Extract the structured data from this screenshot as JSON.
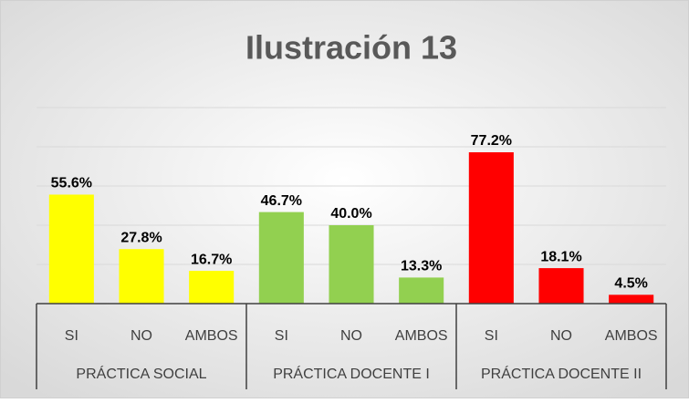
{
  "chart_data": {
    "type": "bar",
    "title": "Ilustración 13",
    "ylim": [
      0,
      100
    ],
    "yticks": [
      0,
      20,
      40,
      60,
      80,
      100
    ],
    "grid": true,
    "groups": [
      {
        "name": "PRÁCTICA SOCIAL",
        "color": "#ffff00",
        "categories": [
          "SI",
          "NO",
          "AMBOS"
        ],
        "values": [
          55.6,
          27.8,
          16.7
        ],
        "value_labels": [
          "55.6%",
          "27.8%",
          "16.7%"
        ]
      },
      {
        "name": "PRÁCTICA DOCENTE I",
        "color": "#92d050",
        "categories": [
          "SI",
          "NO",
          "AMBOS"
        ],
        "values": [
          46.7,
          40.0,
          13.3
        ],
        "value_labels": [
          "46.7%",
          "40.0%",
          "13.3%"
        ]
      },
      {
        "name": "PRÁCTICA  DOCENTE II",
        "color": "#ff0000",
        "categories": [
          "SI",
          "NO",
          "AMBOS"
        ],
        "values": [
          77.2,
          18.1,
          4.5
        ],
        "value_labels": [
          "77.2%",
          "18.1%",
          "4.5%"
        ]
      }
    ]
  }
}
